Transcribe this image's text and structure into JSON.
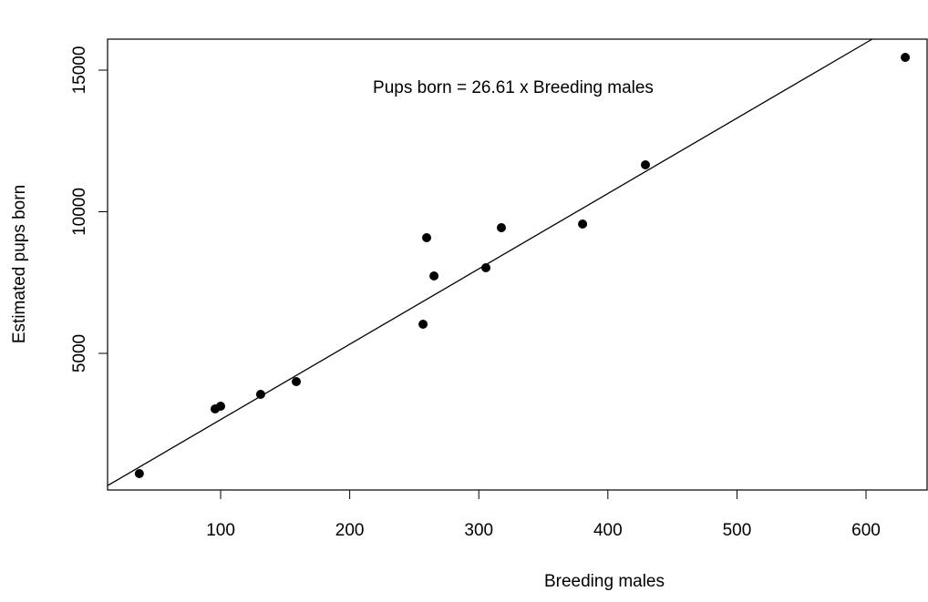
{
  "chart_data": {
    "type": "scatter",
    "annotation": "Pups born = 26.61 x Breeding males",
    "x_label": "Breeding males",
    "y_label": "Estimated pups born",
    "x": [
      37,
      95.7,
      100,
      131,
      158.6,
      256.8,
      259.6,
      265.3,
      305.5,
      317.5,
      380.4,
      429.1,
      630.4
    ],
    "values": [
      756,
      3039,
      3135,
      3553,
      4003,
      6029,
      9084,
      7733,
      8023,
      9437,
      9566,
      11656,
      15450
    ],
    "color": "#000000",
    "fit_slope": 26.61,
    "xlim": [
      12.4,
      647.3
    ],
    "ylim": [
      177,
      16093
    ],
    "xticks": [
      100,
      200,
      300,
      400,
      500,
      600
    ],
    "yticks": [
      5000,
      10000,
      15000
    ]
  }
}
